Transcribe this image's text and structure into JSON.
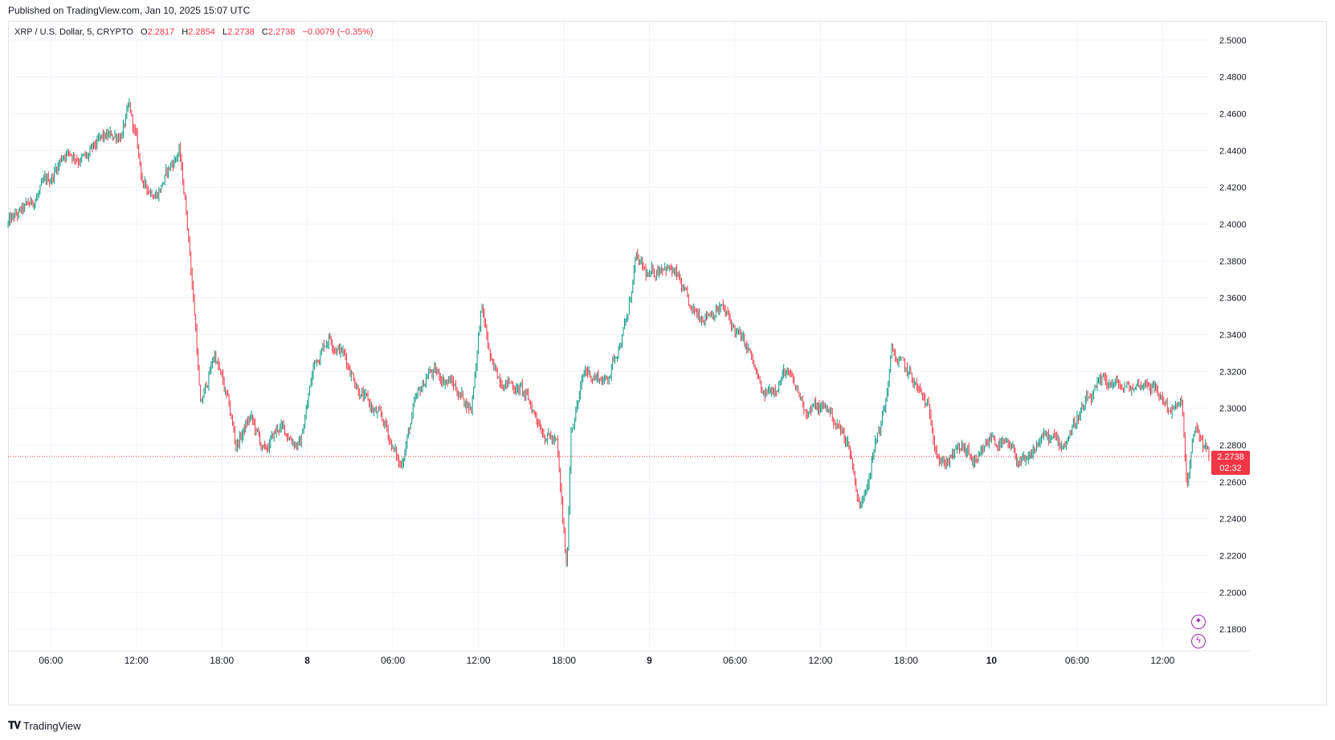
{
  "header": {
    "published": "Published on TradingView.com, Jan 10, 2025 15:07 UTC"
  },
  "legend": {
    "symbol": "XRP / U.S. Dollar, 5, CRYPTO",
    "o_label": "O",
    "o": "2.2817",
    "h_label": "H",
    "h": "2.2854",
    "l_label": "L",
    "l": "2.2738",
    "c_label": "C",
    "c": "2.2738",
    "change": "−0.0079 (−0.35%)"
  },
  "price_tag": {
    "price": "2.2738",
    "countdown": "02:32"
  },
  "branding": {
    "text": "TradingView"
  },
  "icons": [
    "sparkle-icon",
    "lightning-icon"
  ],
  "colors": {
    "up": "#089981",
    "down": "#f23645",
    "grid": "#f0f3fa"
  },
  "chart_data": {
    "type": "candlestick",
    "symbol": "XRP / U.S. Dollar",
    "interval": "5",
    "ylim": [
      2.17,
      2.51
    ],
    "y_ticks": [
      "2.5000",
      "2.4800",
      "2.4600",
      "2.4400",
      "2.4200",
      "2.4000",
      "2.3800",
      "2.3600",
      "2.3400",
      "2.3200",
      "2.3000",
      "2.2800",
      "2.2600",
      "2.2400",
      "2.2200",
      "2.2000",
      "2.1800"
    ],
    "x_ticks": [
      {
        "label": "06:00",
        "h": 6,
        "bold": false
      },
      {
        "label": "12:00",
        "h": 12,
        "bold": false
      },
      {
        "label": "18:00",
        "h": 18,
        "bold": false
      },
      {
        "label": "8",
        "h": 24,
        "bold": true
      },
      {
        "label": "06:00",
        "h": 30,
        "bold": false
      },
      {
        "label": "12:00",
        "h": 36,
        "bold": false
      },
      {
        "label": "18:00",
        "h": 42,
        "bold": false
      },
      {
        "label": "9",
        "h": 48,
        "bold": true
      },
      {
        "label": "06:00",
        "h": 54,
        "bold": false
      },
      {
        "label": "12:00",
        "h": 60,
        "bold": false
      },
      {
        "label": "18:00",
        "h": 66,
        "bold": false
      },
      {
        "label": "10",
        "h": 72,
        "bold": true
      },
      {
        "label": "06:00",
        "h": 78,
        "bold": false
      },
      {
        "label": "12:00",
        "h": 84,
        "bold": false
      }
    ],
    "x_range_hours": [
      3,
      87.25
    ],
    "last_price": 2.2738,
    "path_anchors": [
      [
        3.0,
        2.4
      ],
      [
        4.5,
        2.41
      ],
      [
        6.0,
        2.425
      ],
      [
        7.0,
        2.44
      ],
      [
        8.5,
        2.435
      ],
      [
        9.5,
        2.445
      ],
      [
        11.0,
        2.45
      ],
      [
        11.5,
        2.462
      ],
      [
        12.0,
        2.445
      ],
      [
        12.5,
        2.42
      ],
      [
        13.5,
        2.418
      ],
      [
        15.0,
        2.44
      ],
      [
        15.6,
        2.4
      ],
      [
        16.2,
        2.34
      ],
      [
        16.5,
        2.3
      ],
      [
        17.5,
        2.33
      ],
      [
        18.5,
        2.3
      ],
      [
        19.0,
        2.28
      ],
      [
        20.0,
        2.295
      ],
      [
        21.0,
        2.275
      ],
      [
        22.0,
        2.29
      ],
      [
        23.5,
        2.28
      ],
      [
        24.5,
        2.325
      ],
      [
        25.5,
        2.34
      ],
      [
        26.5,
        2.33
      ],
      [
        28.0,
        2.305
      ],
      [
        29.5,
        2.29
      ],
      [
        30.5,
        2.268
      ],
      [
        31.5,
        2.3
      ],
      [
        32.5,
        2.32
      ],
      [
        34.0,
        2.315
      ],
      [
        35.5,
        2.3
      ],
      [
        36.2,
        2.355
      ],
      [
        37.0,
        2.32
      ],
      [
        39.0,
        2.31
      ],
      [
        40.5,
        2.29
      ],
      [
        41.5,
        2.28
      ],
      [
        42.2,
        2.21
      ],
      [
        42.5,
        2.29
      ],
      [
        43.5,
        2.32
      ],
      [
        45.0,
        2.315
      ],
      [
        46.5,
        2.35
      ],
      [
        47.0,
        2.38
      ],
      [
        48.0,
        2.37
      ],
      [
        49.0,
        2.38
      ],
      [
        50.0,
        2.37
      ],
      [
        51.0,
        2.35
      ],
      [
        53.0,
        2.355
      ],
      [
        55.0,
        2.33
      ],
      [
        56.0,
        2.305
      ],
      [
        57.5,
        2.32
      ],
      [
        59.0,
        2.3
      ],
      [
        60.5,
        2.3
      ],
      [
        62.0,
        2.28
      ],
      [
        62.8,
        2.245
      ],
      [
        63.5,
        2.27
      ],
      [
        64.5,
        2.3
      ],
      [
        65.0,
        2.33
      ],
      [
        66.5,
        2.315
      ],
      [
        67.5,
        2.3
      ],
      [
        68.5,
        2.27
      ],
      [
        70.0,
        2.278
      ],
      [
        71.0,
        2.268
      ],
      [
        72.0,
        2.285
      ],
      [
        73.5,
        2.275
      ],
      [
        74.5,
        2.268
      ],
      [
        75.5,
        2.285
      ],
      [
        77.0,
        2.28
      ],
      [
        78.0,
        2.295
      ],
      [
        79.0,
        2.305
      ],
      [
        80.0,
        2.315
      ],
      [
        81.5,
        2.31
      ],
      [
        83.0,
        2.315
      ],
      [
        84.5,
        2.3
      ],
      [
        85.4,
        2.3
      ],
      [
        85.7,
        2.255
      ],
      [
        86.3,
        2.29
      ],
      [
        87.25,
        2.2738
      ]
    ]
  }
}
